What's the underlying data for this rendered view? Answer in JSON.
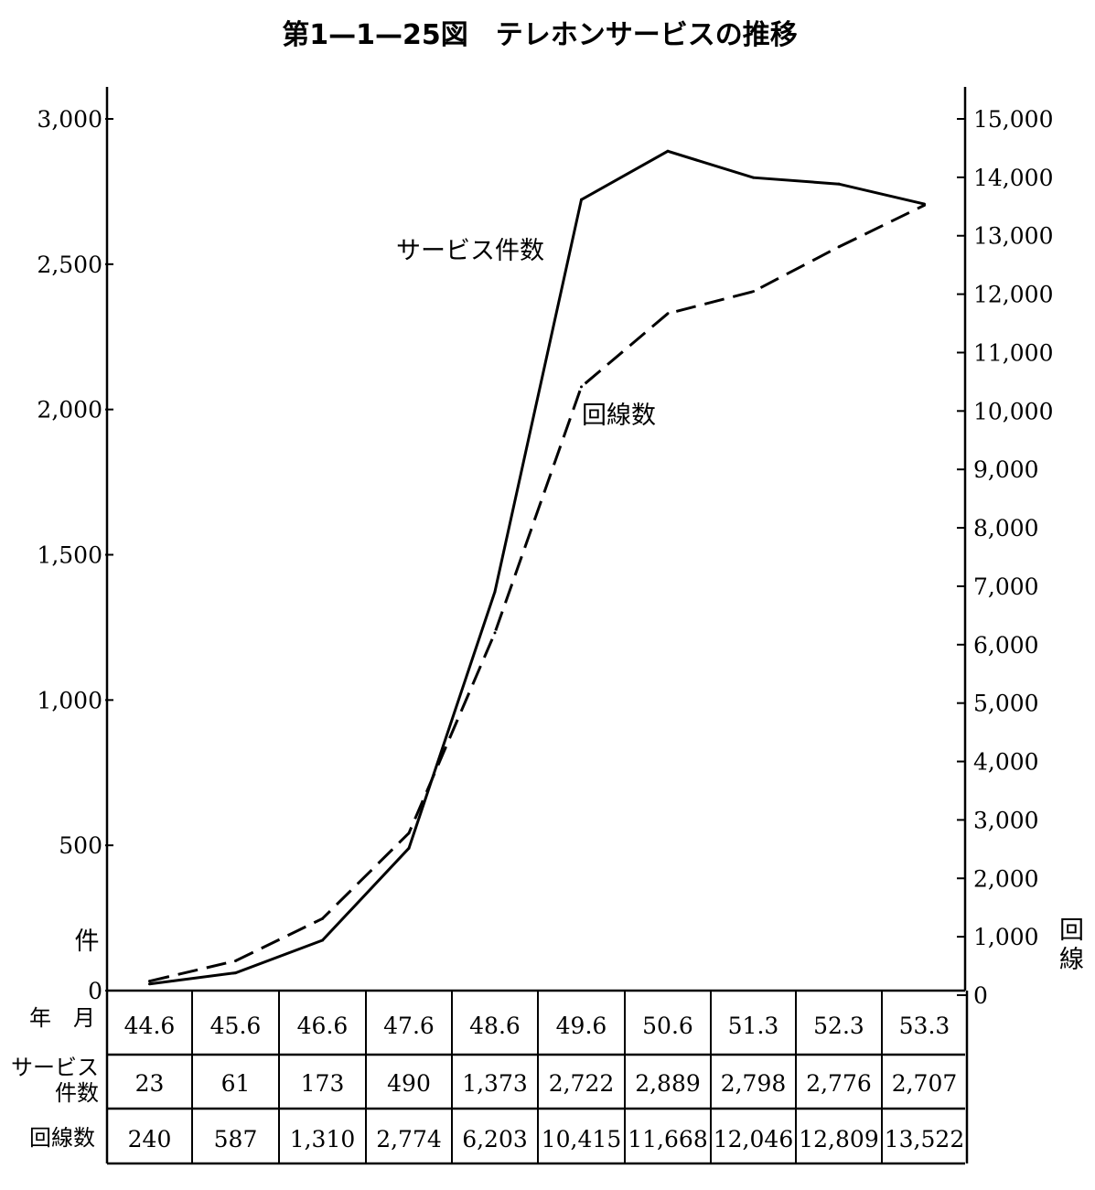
{
  "title": "第1—1—25図　テレホンサービスの推移",
  "chart_data": {
    "type": "line",
    "title": "第1—1—25図　テレホンサービスの推移",
    "categories": [
      "44.6",
      "45.6",
      "46.6",
      "47.6",
      "48.6",
      "49.6",
      "50.6",
      "51.3",
      "52.3",
      "53.3"
    ],
    "series": [
      {
        "name": "サービス件数",
        "axis": "left",
        "style": "solid",
        "values": [
          23,
          61,
          173,
          490,
          1373,
          2722,
          2889,
          2798,
          2776,
          2707
        ]
      },
      {
        "name": "回線数",
        "axis": "right",
        "style": "dashed",
        "values": [
          240,
          587,
          1310,
          2774,
          6203,
          10415,
          11668,
          12046,
          12809,
          13522
        ]
      }
    ],
    "left_axis": {
      "label": "件",
      "ylim": [
        0,
        3000
      ],
      "ticks": [
        0,
        500,
        1000,
        1500,
        2000,
        2500,
        3000
      ],
      "tick_labels": [
        "0",
        "500",
        "1,000",
        "1,500",
        "2,000",
        "2,500",
        "3,000"
      ]
    },
    "right_axis": {
      "label": "回線",
      "ylim": [
        0,
        15000
      ],
      "ticks": [
        0,
        1000,
        2000,
        3000,
        4000,
        5000,
        6000,
        7000,
        8000,
        9000,
        10000,
        11000,
        12000,
        13000,
        14000,
        15000
      ],
      "tick_labels": [
        "0",
        "1,000",
        "2,000",
        "3,000",
        "4,000",
        "5,000",
        "6,000",
        "7,000",
        "8,000",
        "9,000",
        "10,000",
        "11,000",
        "12,000",
        "13,000",
        "14,000",
        "15,000"
      ]
    },
    "grid": false
  },
  "table": {
    "row_headers": [
      "年　月",
      "サービス件数",
      "回線数"
    ],
    "rows": [
      [
        "44.6",
        "45.6",
        "46.6",
        "47.6",
        "48.6",
        "49.6",
        "50.6",
        "51.3",
        "52.3",
        "53.3"
      ],
      [
        "23",
        "61",
        "173",
        "490",
        "1,373",
        "2,722",
        "2,889",
        "2,798",
        "2,776",
        "2,707"
      ],
      [
        "240",
        "587",
        "1,310",
        "2,774",
        "6,203",
        "10,415",
        "11,668",
        "12,046",
        "12,809",
        "13,522"
      ]
    ]
  }
}
